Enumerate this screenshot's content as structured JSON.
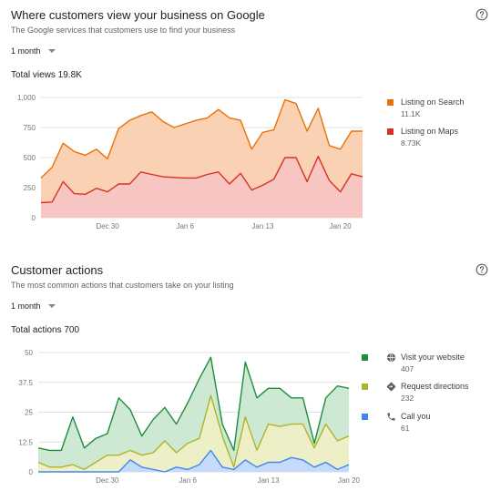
{
  "views": {
    "title": "Where customers view your business on Google",
    "subtitle": "The Google services that customers use to find your business",
    "period": "1 month",
    "total": "Total views 19.8K",
    "legend": [
      {
        "name": "Listing on Search",
        "value": "11.1K",
        "color": "#e8710a"
      },
      {
        "name": "Listing on Maps",
        "value": "8.73K",
        "color": "#d93025"
      }
    ]
  },
  "actions": {
    "title": "Customer actions",
    "subtitle": "The most common actions that customers take on your listing",
    "period": "1 month",
    "total": "Total actions 700",
    "legend": [
      {
        "name": "Visit your website",
        "value": "407",
        "color": "#1e8e3e",
        "icon": "globe-icon"
      },
      {
        "name": "Request directions",
        "value": "232",
        "color": "#afb42b",
        "icon": "directions-icon"
      },
      {
        "name": "Call you",
        "value": "61",
        "color": "#4285f4",
        "icon": "phone-icon"
      }
    ]
  },
  "chart_data": [
    {
      "type": "area",
      "x_tick_labels": [
        "Dec 30",
        "Jan 6",
        "Jan 13",
        "Jan 20"
      ],
      "x_tick_index": [
        6,
        13,
        20,
        27
      ],
      "yticks": [
        0,
        250,
        500,
        750,
        1000
      ],
      "ytick_labels": [
        "0",
        "250",
        "500",
        "750",
        "1,000"
      ],
      "ylim": [
        0,
        1000
      ],
      "grid": true,
      "legend_position": "right",
      "series": [
        {
          "name": "Listing on Search",
          "color": "#e8710a",
          "fill": "#fad2b3",
          "values": [
            330,
            420,
            620,
            550,
            520,
            570,
            490,
            740,
            810,
            850,
            880,
            800,
            750,
            780,
            810,
            830,
            900,
            830,
            810,
            570,
            710,
            730,
            980,
            950,
            720,
            910,
            600,
            570,
            720,
            720
          ]
        },
        {
          "name": "Listing on Maps",
          "color": "#d93025",
          "fill": "#f8c6c2",
          "values": [
            125,
            130,
            300,
            200,
            195,
            245,
            215,
            280,
            280,
            380,
            360,
            340,
            335,
            330,
            330,
            360,
            380,
            280,
            370,
            230,
            270,
            320,
            500,
            500,
            300,
            510,
            310,
            215,
            365,
            340
          ]
        }
      ]
    },
    {
      "type": "area",
      "x_tick_labels": [
        "Dec 30",
        "Jan 6",
        "Jan 13",
        "Jan 20"
      ],
      "x_tick_index": [
        6,
        13,
        20,
        27
      ],
      "yticks": [
        0,
        12.5,
        25,
        37.5,
        50
      ],
      "ytick_labels": [
        "0",
        "12.5",
        "25",
        "37.5",
        "50"
      ],
      "ylim": [
        0,
        50
      ],
      "grid": true,
      "legend_position": "right",
      "series": [
        {
          "name": "Visit your website",
          "color": "#1e8e3e",
          "fill": "#cde8d3",
          "values": [
            10,
            9,
            9,
            23,
            10,
            14,
            16,
            31,
            26,
            15,
            22,
            27,
            20,
            29,
            39,
            48,
            20,
            9,
            46,
            31,
            35,
            35,
            31,
            31,
            12,
            31,
            36,
            35
          ]
        },
        {
          "name": "Request directions",
          "color": "#afb42b",
          "fill": "#edf0c6",
          "values": [
            4,
            2,
            2,
            3,
            1,
            4,
            7,
            7,
            9,
            7,
            8,
            13,
            8,
            12,
            14,
            32,
            15,
            2,
            23,
            9,
            20,
            19,
            20,
            20,
            10,
            20,
            13,
            15
          ]
        },
        {
          "name": "Call you",
          "color": "#4285f4",
          "fill": "#c6daf9",
          "values": [
            0,
            0,
            0,
            0,
            0,
            0,
            0,
            0,
            5,
            2,
            1,
            0,
            2,
            1,
            3,
            9,
            2,
            1,
            5,
            2,
            4,
            4,
            6,
            5,
            2,
            4,
            1,
            3
          ]
        }
      ]
    }
  ]
}
